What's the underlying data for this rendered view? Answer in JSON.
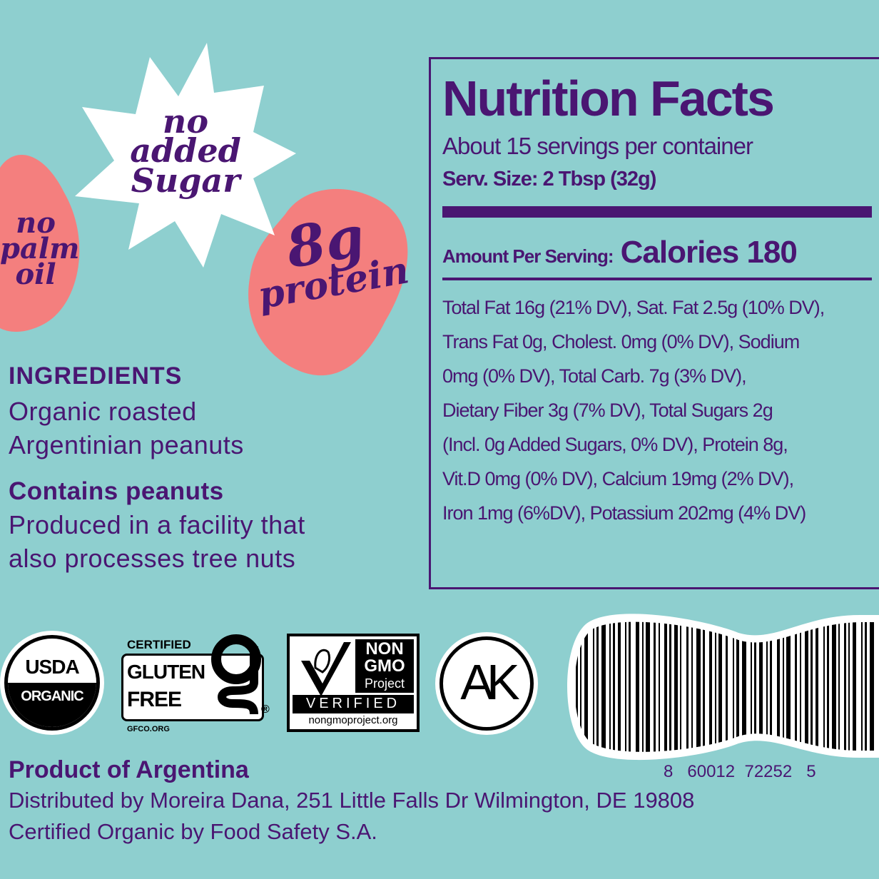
{
  "badges": {
    "palm_oil": [
      "no",
      "palm",
      "oil"
    ],
    "sugar": [
      "no",
      "added",
      "Sugar"
    ],
    "protein": [
      "8g",
      "protein"
    ]
  },
  "ingredients": {
    "heading": "INGREDIENTS",
    "lines": [
      "Organic roasted",
      "Argentinian peanuts"
    ],
    "allergen_heading": "Contains peanuts",
    "allergen_lines": [
      "Produced in a facility that",
      "also processes tree nuts"
    ]
  },
  "nutrition": {
    "title": "Nutrition Facts",
    "servings": "About 15 servings per container",
    "serving_size": "Serv. Size: 2 Tbsp (32g)",
    "amount_label": "Amount Per Serving:",
    "calories": "Calories 180",
    "lines": [
      "Total Fat 16g (21% DV), Sat. Fat 2.5g (10% DV),",
      "Trans Fat 0g, Cholest. 0mg (0% DV), Sodium",
      "0mg (0% DV), Total Carb. 7g (3% DV),",
      "Dietary Fiber 3g (7% DV), Total Sugars 2g",
      "(Incl. 0g Added Sugars, 0% DV), Protein 8g,",
      "Vit.D 0mg (0% DV), Calcium 19mg (2% DV),",
      "Iron 1mg (6%DV), Potassium 202mg (4% DV)"
    ]
  },
  "certifications": {
    "usda": [
      "USDA",
      "ORGANIC"
    ],
    "gluten": {
      "top": "CERTIFIED",
      "main": [
        "GLUTEN",
        "FREE"
      ],
      "url": "GFCO.ORG",
      "reg": "®"
    },
    "nongmo": {
      "lines": [
        "NON",
        "GMO",
        "Project"
      ],
      "verified": "VERIFIED",
      "url": "nongmoproject.org"
    },
    "kosher": "AK"
  },
  "barcode": {
    "digits": [
      "8",
      "60012",
      "72252",
      "5"
    ]
  },
  "footer": {
    "origin": "Product of Argentina",
    "distributor": "Distributed by Moreira Dana, 251 Little Falls Dr Wilmington, DE 19808",
    "certifier": "Certified Organic by Food Safety S.A."
  },
  "colors": {
    "background": "#8ecfcf",
    "purple": "#4a1672",
    "pink": "#f47f7e",
    "white": "#ffffff"
  }
}
